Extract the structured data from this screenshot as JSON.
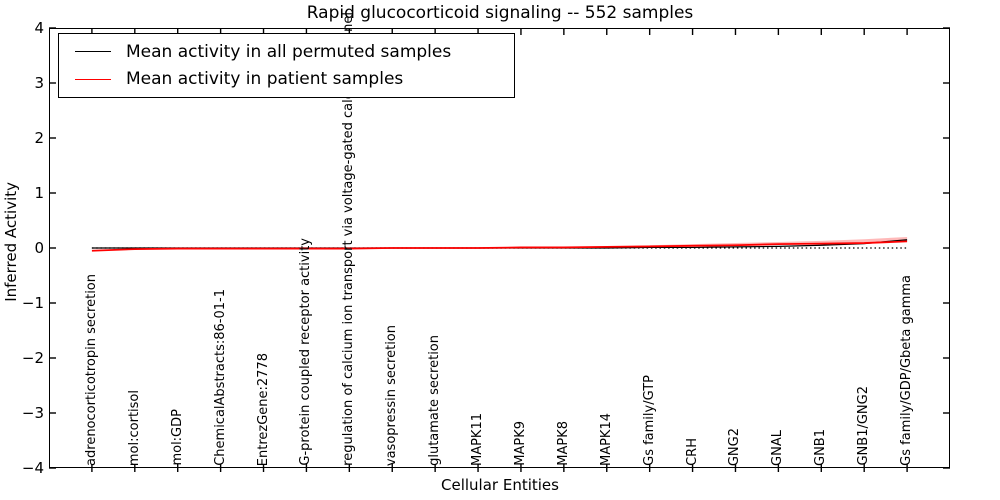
{
  "title": "Rapid glucocorticoid signaling -- 552 samples",
  "axes": {
    "ylabel": "Inferred Activity",
    "xlabel": "Cellular Entities",
    "ytick_labels": [
      "4",
      "3",
      "2",
      "1",
      "0",
      "−1",
      "−2",
      "−3",
      "−4"
    ]
  },
  "legend": {
    "items": [
      {
        "label": "Mean activity in all permuted samples",
        "color": "#000000"
      },
      {
        "label": "Mean activity in patient samples",
        "color": "#ff0000"
      }
    ]
  },
  "chart_data": {
    "type": "line",
    "title": "Rapid glucocorticoid signaling -- 552 samples",
    "xlabel": "Cellular Entities",
    "ylabel": "Inferred Activity",
    "ylim": [
      -4,
      4
    ],
    "yticks": [
      4,
      3,
      2,
      1,
      0,
      -1,
      -2,
      -3,
      -4
    ],
    "grid": false,
    "legend_position": "upper left",
    "zero_line": {
      "style": "dotted",
      "color": "#000000",
      "y": 0
    },
    "categories": [
      "adrenocorticotropin secretion",
      "mol:cortisol",
      "mol:GDP",
      "ChemicalAbstracts:86-01-1",
      "EntrezGene:2778",
      "G-protein coupled receptor activity",
      "regulation of calcium ion transport via voltage-gated calcium channel",
      "vasopressin secretion",
      "glutamate secretion",
      "MAPK11",
      "MAPK9",
      "MAPK8",
      "MAPK14",
      "Gs family/GTP",
      "CRH",
      "GNG2",
      "GNAL",
      "GNB1",
      "GNB1/GNG2",
      "Gs family/GDP/Gbeta gamma"
    ],
    "series": [
      {
        "name": "Mean activity in all permuted samples",
        "color": "#000000",
        "width": 1.2,
        "values": [
          0,
          0,
          0,
          0,
          0,
          0,
          0,
          0,
          0,
          0,
          0,
          0,
          0,
          0.01,
          0.01,
          0.02,
          0.03,
          0.05,
          0.08,
          0.15
        ]
      },
      {
        "name": "Mean activity in patient samples",
        "color": "#ff0000",
        "width": 1.8,
        "values": [
          -0.05,
          -0.02,
          -0.01,
          -0.01,
          -0.01,
          -0.01,
          -0.01,
          0,
          0,
          0,
          0.01,
          0.01,
          0.02,
          0.03,
          0.04,
          0.05,
          0.07,
          0.08,
          0.09,
          0.12
        ]
      }
    ],
    "band": {
      "attached_to": "Mean activity in patient samples",
      "color": "#ff8080",
      "opacity": 0.55,
      "start_index": 13,
      "top_values": [
        0.05,
        0.07,
        0.09,
        0.11,
        0.13,
        0.16,
        0.2
      ]
    }
  }
}
